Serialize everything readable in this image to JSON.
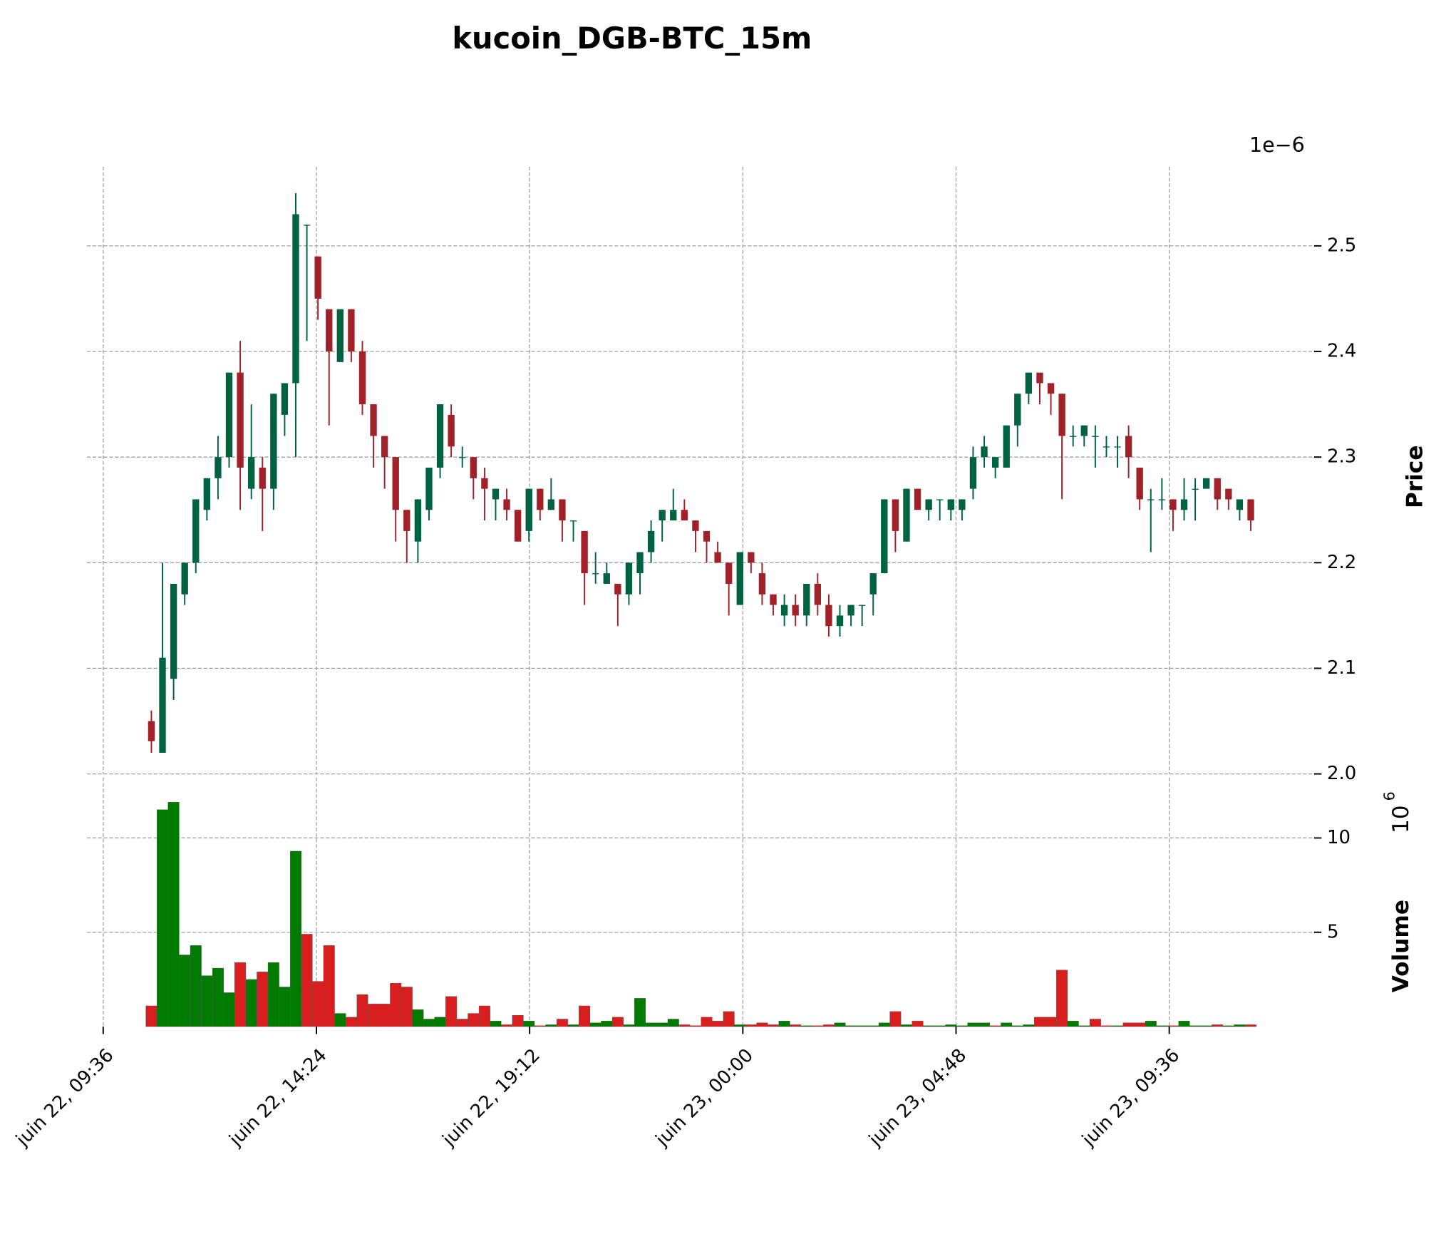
{
  "chart_data": {
    "type": "candlestick",
    "title": "kucoin_DGB-BTC_15m",
    "y_label": "Price",
    "y_offset": "1e−6",
    "y2_label": "Volume",
    "y2_offset": {
      "base": "10",
      "exponent": "6"
    },
    "up_color": "#006340",
    "down_color": "#a02128",
    "volume_up_color": "#007a00",
    "volume_down_color": "#d81e1e",
    "grid": true,
    "open": [
      2.05,
      2.02,
      2.09,
      2.17,
      2.2,
      2.25,
      2.28,
      2.3,
      2.38,
      2.27,
      2.29,
      2.27,
      2.34,
      2.37,
      2.52,
      2.49,
      2.44,
      2.39,
      2.44,
      2.4,
      2.35,
      2.32,
      2.3,
      2.25,
      2.22,
      2.25,
      2.29,
      2.34,
      2.3,
      2.3,
      2.28,
      2.26,
      2.26,
      2.25,
      2.23,
      2.27,
      2.25,
      2.26,
      2.24,
      2.23,
      2.19,
      2.18,
      2.18,
      2.17,
      2.19,
      2.21,
      2.24,
      2.24,
      2.25,
      2.24,
      2.23,
      2.21,
      2.2,
      2.16,
      2.21,
      2.19,
      2.17,
      2.15,
      2.16,
      2.15,
      2.18,
      2.16,
      2.14,
      2.15,
      2.16,
      2.17,
      2.19,
      2.26,
      2.22,
      2.27,
      2.25,
      2.26,
      2.25,
      2.25,
      2.27,
      2.3,
      2.29,
      2.29,
      2.33,
      2.36,
      2.38,
      2.37,
      2.36,
      2.32,
      2.32,
      2.32,
      2.31,
      2.31,
      2.32,
      2.29,
      2.26,
      2.26,
      2.26,
      2.25,
      2.27,
      2.27,
      2.28,
      2.27,
      2.25,
      2.26
    ],
    "high": [
      2.06,
      2.2,
      2.18,
      2.2,
      2.26,
      2.28,
      2.32,
      2.38,
      2.41,
      2.35,
      2.3,
      2.36,
      2.37,
      2.55,
      2.52,
      2.49,
      2.44,
      2.44,
      2.44,
      2.41,
      2.35,
      2.32,
      2.3,
      2.25,
      2.26,
      2.29,
      2.35,
      2.35,
      2.31,
      2.3,
      2.29,
      2.27,
      2.27,
      2.25,
      2.27,
      2.27,
      2.28,
      2.26,
      2.24,
      2.23,
      2.21,
      2.2,
      2.18,
      2.2,
      2.21,
      2.24,
      2.25,
      2.27,
      2.26,
      2.24,
      2.23,
      2.22,
      2.2,
      2.21,
      2.21,
      2.2,
      2.17,
      2.17,
      2.17,
      2.18,
      2.19,
      2.17,
      2.16,
      2.16,
      2.16,
      2.19,
      2.26,
      2.26,
      2.27,
      2.27,
      2.26,
      2.26,
      2.26,
      2.26,
      2.31,
      2.32,
      2.3,
      2.33,
      2.36,
      2.38,
      2.38,
      2.37,
      2.36,
      2.33,
      2.33,
      2.33,
      2.32,
      2.32,
      2.33,
      2.29,
      2.27,
      2.28,
      2.26,
      2.28,
      2.28,
      2.28,
      2.28,
      2.27,
      2.26,
      2.26
    ],
    "low": [
      2.02,
      2.02,
      2.07,
      2.16,
      2.19,
      2.24,
      2.26,
      2.29,
      2.25,
      2.26,
      2.23,
      2.25,
      2.32,
      2.3,
      2.41,
      2.43,
      2.33,
      2.39,
      2.39,
      2.34,
      2.29,
      2.27,
      2.22,
      2.2,
      2.2,
      2.24,
      2.28,
      2.3,
      2.29,
      2.26,
      2.24,
      2.24,
      2.24,
      2.22,
      2.22,
      2.24,
      2.25,
      2.22,
      2.22,
      2.16,
      2.18,
      2.18,
      2.14,
      2.16,
      2.17,
      2.2,
      2.22,
      2.24,
      2.24,
      2.21,
      2.2,
      2.2,
      2.15,
      2.16,
      2.19,
      2.16,
      2.15,
      2.14,
      2.14,
      2.14,
      2.15,
      2.13,
      2.13,
      2.14,
      2.14,
      2.15,
      2.19,
      2.21,
      2.22,
      2.25,
      2.24,
      2.24,
      2.24,
      2.24,
      2.26,
      2.29,
      2.28,
      2.29,
      2.31,
      2.35,
      2.35,
      2.34,
      2.26,
      2.31,
      2.31,
      2.29,
      2.3,
      2.29,
      2.28,
      2.25,
      2.21,
      2.25,
      2.23,
      2.24,
      2.24,
      2.27,
      2.25,
      2.25,
      2.24,
      2.23
    ],
    "close": [
      2.031,
      2.11,
      2.18,
      2.2,
      2.26,
      2.28,
      2.3,
      2.38,
      2.29,
      2.3,
      2.27,
      2.36,
      2.37,
      2.53,
      2.52,
      2.45,
      2.4,
      2.44,
      2.4,
      2.35,
      2.32,
      2.3,
      2.25,
      2.23,
      2.26,
      2.29,
      2.35,
      2.31,
      2.3,
      2.28,
      2.27,
      2.27,
      2.25,
      2.22,
      2.27,
      2.25,
      2.26,
      2.24,
      2.24,
      2.19,
      2.19,
      2.19,
      2.17,
      2.2,
      2.21,
      2.23,
      2.25,
      2.25,
      2.24,
      2.23,
      2.22,
      2.2,
      2.18,
      2.21,
      2.2,
      2.17,
      2.16,
      2.16,
      2.15,
      2.18,
      2.16,
      2.14,
      2.15,
      2.16,
      2.16,
      2.19,
      2.26,
      2.23,
      2.27,
      2.25,
      2.26,
      2.26,
      2.26,
      2.26,
      2.3,
      2.31,
      2.3,
      2.33,
      2.36,
      2.38,
      2.37,
      2.36,
      2.32,
      2.32,
      2.33,
      2.32,
      2.31,
      2.31,
      2.3,
      2.26,
      2.26,
      2.26,
      2.25,
      2.26,
      2.27,
      2.28,
      2.26,
      2.26,
      2.26,
      2.24
    ],
    "volume": [
      1.1,
      11.5,
      11.9,
      3.8,
      4.3,
      2.7,
      3.1,
      1.8,
      3.4,
      2.5,
      2.9,
      3.4,
      2.1,
      9.3,
      4.9,
      2.4,
      4.3,
      0.7,
      0.5,
      1.7,
      1.2,
      1.2,
      2.3,
      2.1,
      0.9,
      0.4,
      0.5,
      1.6,
      0.4,
      0.7,
      1.1,
      0.3,
      0.1,
      0.6,
      0.3,
      0.05,
      0.1,
      0.4,
      0.1,
      1.1,
      0.2,
      0.3,
      0.5,
      0.1,
      1.5,
      0.2,
      0.2,
      0.4,
      0.1,
      0.05,
      0.5,
      0.3,
      0.8,
      0.1,
      0.1,
      0.2,
      0.1,
      0.3,
      0.1,
      0.05,
      0.05,
      0.1,
      0.2,
      0.05,
      0.05,
      0.05,
      0.2,
      0.8,
      0.1,
      0.3,
      0.05,
      0.05,
      0.1,
      0.05,
      0.2,
      0.2,
      0.05,
      0.2,
      0.05,
      0.1,
      0.5,
      0.5,
      3.0,
      0.3,
      0.05,
      0.4,
      0.05,
      0.05,
      0.2,
      0.2,
      0.3,
      0.05,
      0.05,
      0.3,
      0.05,
      0.05,
      0.1,
      0.05,
      0.1,
      0.1
    ],
    "xlim": [
      -5.8,
      104.7
    ],
    "xticks": [
      {
        "value": -4.34,
        "label": "juin 22, 09:36"
      },
      {
        "value": 14.86,
        "label": "juin 22, 14:24"
      },
      {
        "value": 34.06,
        "label": "juin 22, 19:12"
      },
      {
        "value": 53.26,
        "label": "juin 23, 00:00"
      },
      {
        "value": 72.46,
        "label": "juin 23, 04:48"
      },
      {
        "value": 91.66,
        "label": "juin 23, 09:36"
      }
    ],
    "ylim": [
      2.0,
      2.575
    ],
    "yticks": [
      {
        "value": 2,
        "label": "2.0"
      },
      2.1,
      2.2,
      2.3,
      2.4,
      2.5
    ],
    "y2lim": [
      0,
      13.2
    ],
    "y2ticks": [
      5,
      10
    ]
  }
}
